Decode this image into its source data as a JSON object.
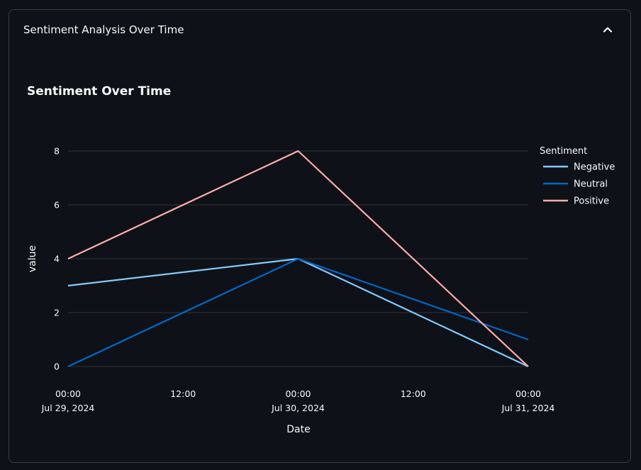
{
  "expander": {
    "title": "Sentiment Analysis Over Time",
    "chevron_icon": "chevron-up-icon"
  },
  "chart_data": {
    "type": "line",
    "title": "Sentiment Over Time",
    "xlabel": "Date",
    "ylabel": "value",
    "x": [
      "2024-07-29T00:00",
      "2024-07-30T00:00",
      "2024-07-31T00:00"
    ],
    "x_ticks": [
      {
        "line1": "00:00",
        "line2": "Jul 29, 2024"
      },
      {
        "line1": "12:00",
        "line2": ""
      },
      {
        "line1": "00:00",
        "line2": "Jul 30, 2024"
      },
      {
        "line1": "12:00",
        "line2": ""
      },
      {
        "line1": "00:00",
        "line2": "Jul 31, 2024"
      }
    ],
    "y_ticks": [
      0,
      2,
      4,
      6,
      8
    ],
    "ylim": [
      0,
      8
    ],
    "grid": true,
    "legend_title": "Sentiment",
    "legend_position": "right",
    "series": [
      {
        "name": "Negative",
        "color": "#83c9ff",
        "values": [
          3,
          4,
          0
        ]
      },
      {
        "name": "Neutral",
        "color": "#0068c9",
        "values": [
          0,
          4,
          1
        ]
      },
      {
        "name": "Positive",
        "color": "#ffabab",
        "values": [
          4,
          8,
          0
        ]
      }
    ]
  }
}
